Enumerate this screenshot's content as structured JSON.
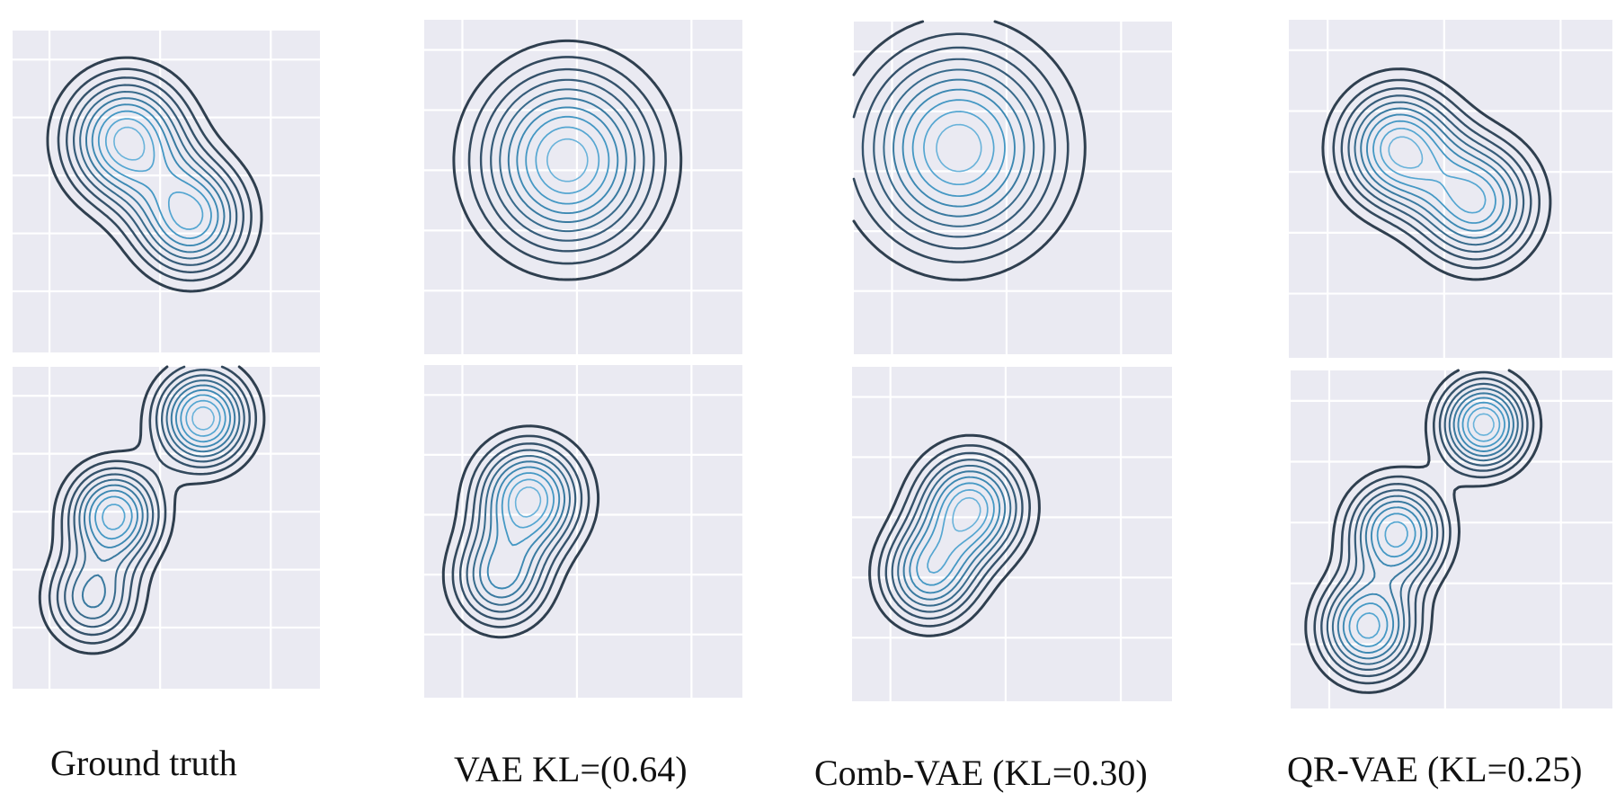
{
  "figure": {
    "captions": [
      "Ground truth",
      "VAE KL=(0.64)",
      "Comb-VAE (KL=0.30)",
      "QR-VAE (KL=0.25)"
    ]
  },
  "chart_data": [
    {
      "type": "contour",
      "method": "Ground truth",
      "row": 1,
      "modes": [
        {
          "x": 0.37,
          "y": 0.66,
          "w": 1.0,
          "s": 0.13
        },
        {
          "x": 0.58,
          "y": 0.42,
          "w": 0.9,
          "s": 0.12
        }
      ],
      "grid": true
    },
    {
      "type": "contour",
      "method": "VAE KL=(0.64)",
      "row": 1,
      "modes": [
        {
          "x": 0.45,
          "y": 0.58,
          "w": 1.0,
          "s": 0.18
        }
      ],
      "grid": true
    },
    {
      "type": "contour",
      "method": "Comb-VAE (KL=0.30)",
      "row": 1,
      "modes": [
        {
          "x": 0.33,
          "y": 0.62,
          "w": 1.0,
          "s": 0.2
        }
      ],
      "grid": true
    },
    {
      "type": "contour",
      "method": "QR-VAE (KL=0.25)",
      "row": 1,
      "modes": [
        {
          "x": 0.34,
          "y": 0.62,
          "w": 1.0,
          "s": 0.12
        },
        {
          "x": 0.58,
          "y": 0.46,
          "w": 0.9,
          "s": 0.12
        }
      ],
      "grid": true
    },
    {
      "type": "contour",
      "method": "Ground truth",
      "row": 2,
      "modes": [
        {
          "x": 0.62,
          "y": 0.84,
          "w": 1.0,
          "s": 0.1
        },
        {
          "x": 0.33,
          "y": 0.54,
          "w": 0.9,
          "s": 0.1
        },
        {
          "x": 0.26,
          "y": 0.28,
          "w": 0.6,
          "s": 0.1
        }
      ],
      "grid": true
    },
    {
      "type": "contour",
      "method": "VAE KL=(0.64)",
      "row": 2,
      "modes": [
        {
          "x": 0.33,
          "y": 0.6,
          "w": 1.0,
          "s": 0.11
        },
        {
          "x": 0.24,
          "y": 0.36,
          "w": 0.7,
          "s": 0.1
        }
      ],
      "grid": true
    },
    {
      "type": "contour",
      "method": "Comb-VAE (KL=0.30)",
      "row": 2,
      "modes": [
        {
          "x": 0.37,
          "y": 0.58,
          "w": 1.0,
          "s": 0.11
        },
        {
          "x": 0.24,
          "y": 0.38,
          "w": 0.8,
          "s": 0.1
        }
      ],
      "grid": true
    },
    {
      "type": "contour",
      "method": "QR-VAE (KL=0.25)",
      "row": 2,
      "modes": [
        {
          "x": 0.6,
          "y": 0.84,
          "w": 1.0,
          "s": 0.09
        },
        {
          "x": 0.33,
          "y": 0.52,
          "w": 0.9,
          "s": 0.1
        },
        {
          "x": 0.24,
          "y": 0.24,
          "w": 0.9,
          "s": 0.1
        }
      ],
      "grid": true
    }
  ]
}
